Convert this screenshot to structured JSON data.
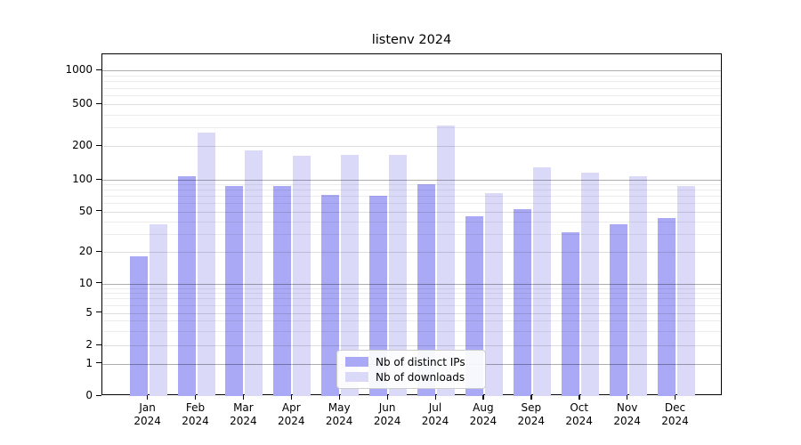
{
  "chart_data": {
    "type": "bar",
    "title": "listenv 2024",
    "categories": [
      "Jan",
      "Feb",
      "Mar",
      "Apr",
      "May",
      "Jun",
      "Jul",
      "Aug",
      "Sep",
      "Oct",
      "Nov",
      "Dec"
    ],
    "year": "2024",
    "series": [
      {
        "name": "Nb of distinct IPs",
        "color": "#a9a9f5",
        "values": [
          18,
          107,
          88,
          88,
          72,
          71,
          90,
          45,
          52,
          31,
          37,
          43
        ]
      },
      {
        "name": "Nb of downloads",
        "color": "#dadaf8",
        "values": [
          37,
          270,
          182,
          163,
          167,
          166,
          315,
          75,
          130,
          115,
          108,
          88
        ]
      }
    ],
    "y_axis": {
      "scale": "symlog",
      "ticks": [
        0,
        1,
        2,
        5,
        10,
        20,
        50,
        100,
        200,
        500,
        1000
      ]
    },
    "xlabel": "",
    "ylabel": "",
    "grid": true,
    "legend_position": "lower center"
  }
}
